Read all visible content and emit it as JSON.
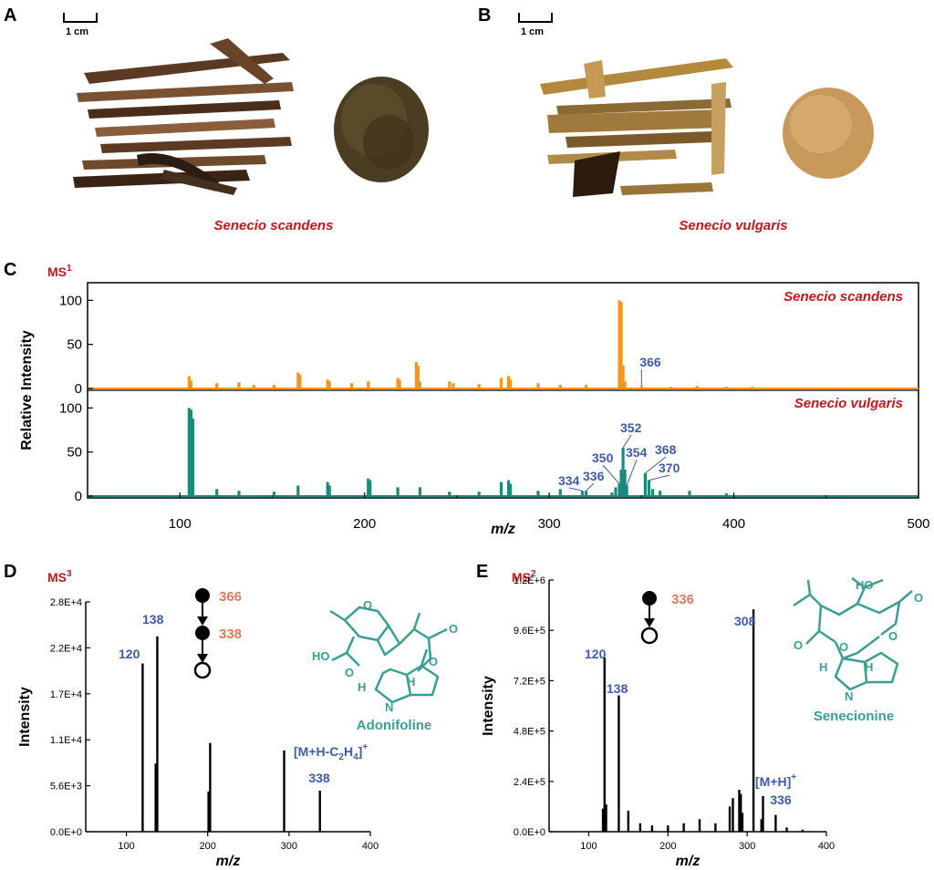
{
  "panels": {
    "a": {
      "letter": "A",
      "scale_label": "1 cm",
      "species": "Senecio scandens"
    },
    "b": {
      "letter": "B",
      "scale_label": "1 cm",
      "species": "Senecio vulgaris"
    },
    "c": {
      "letter": "C",
      "ms_label": "MS",
      "ms_sup": "1"
    },
    "d": {
      "letter": "D",
      "ms_label": "MS",
      "ms_sup": "3",
      "precursors": [
        "366",
        "338"
      ],
      "compound": "Adonifoline",
      "ion_label_main": "[M+H-C",
      "ion_sub": "2",
      "ion_tail": "H",
      "ion_sub2": "4",
      "ion_close": "]",
      "ion_sup": "+",
      "ion_mz": "338"
    },
    "e": {
      "letter": "E",
      "ms_label": "MS",
      "ms_sup": "2",
      "precursors": [
        "336"
      ],
      "compound": "Senecionine",
      "ion_label_main": "[M+H]",
      "ion_sup": "+",
      "ion_mz": "336"
    }
  },
  "colors": {
    "orange": "#f7941d",
    "teal": "#1b8a7a",
    "blue_label": "#3e5aa8",
    "red_label": "#c4161c",
    "structure": "#3a9e92",
    "precursor": "#e07a5f"
  },
  "chart_data": [
    {
      "id": "C-top",
      "type": "bar",
      "title": "",
      "series_label": "Senecio scandens",
      "xlabel": "m/z",
      "ylabel": "Relative Intensity",
      "xlim": [
        50,
        500
      ],
      "ylim": [
        0,
        120
      ],
      "yticks": [
        "0",
        "50",
        "100"
      ],
      "xticks": [
        "100",
        "200",
        "300",
        "400",
        "500"
      ],
      "color": "#f7941d",
      "x": [
        105,
        106,
        120,
        132,
        140,
        151,
        164,
        165,
        180,
        181,
        193,
        202,
        218,
        219,
        228,
        229,
        230,
        246,
        248,
        262,
        274,
        278,
        279,
        294,
        306,
        320,
        338,
        339,
        340,
        341,
        350,
        366,
        380,
        396,
        410
      ],
      "values": [
        14,
        9,
        6,
        7,
        4,
        4,
        18,
        16,
        10,
        8,
        6,
        8,
        12,
        10,
        30,
        26,
        8,
        8,
        6,
        5,
        12,
        14,
        10,
        6,
        4,
        4,
        100,
        98,
        26,
        8,
        3,
        2,
        3,
        2,
        2
      ],
      "annotations": [
        {
          "label": "366",
          "x": 350,
          "y": 3
        }
      ]
    },
    {
      "id": "C-bottom",
      "type": "bar",
      "title": "",
      "series_label": "Senecio vulgaris",
      "xlabel": "m/z",
      "ylabel": "Relative Intensity",
      "xlim": [
        50,
        500
      ],
      "ylim": [
        0,
        120
      ],
      "yticks": [
        "0",
        "50",
        "100"
      ],
      "xticks": [
        "100",
        "200",
        "300",
        "400",
        "500"
      ],
      "color": "#1b8a7a",
      "x": [
        105,
        106,
        107,
        120,
        132,
        151,
        164,
        180,
        181,
        202,
        203,
        218,
        230,
        246,
        262,
        274,
        278,
        279,
        294,
        306,
        318,
        320,
        334,
        336,
        338,
        339,
        340,
        341,
        342,
        352,
        354,
        356,
        360,
        376,
        396
      ],
      "values": [
        100,
        98,
        88,
        8,
        6,
        5,
        12,
        16,
        12,
        20,
        18,
        10,
        10,
        5,
        5,
        16,
        18,
        14,
        6,
        8,
        6,
        6,
        4,
        10,
        14,
        30,
        55,
        30,
        12,
        26,
        18,
        8,
        6,
        6,
        3
      ],
      "annotations": [
        {
          "label": "334",
          "x": 318,
          "y": 6
        },
        {
          "label": "336",
          "x": 320,
          "y": 6
        },
        {
          "label": "350",
          "x": 338,
          "y": 14
        },
        {
          "label": "352",
          "x": 340,
          "y": 55
        },
        {
          "label": "354",
          "x": 342,
          "y": 12
        },
        {
          "label": "368",
          "x": 352,
          "y": 26
        },
        {
          "label": "370",
          "x": 354,
          "y": 18
        }
      ]
    },
    {
      "id": "D",
      "type": "bar",
      "title": "",
      "xlabel": "m/z",
      "ylabel": "Intensity",
      "xlim": [
        50,
        400
      ],
      "ylim": [
        0,
        28000
      ],
      "yticks": [
        "0.0E+0",
        "5.6E+3",
        "1.1E+4",
        "1.7E+4",
        "2.2E+4",
        "2.8E+4"
      ],
      "xticks": [
        "100",
        "200",
        "300",
        "400"
      ],
      "color": "#000000",
      "x": [
        120,
        136,
        138,
        201,
        203,
        294,
        338
      ],
      "values": [
        20500,
        8300,
        23800,
        4900,
        10800,
        9900,
        5000
      ],
      "annotations": [
        {
          "label": "120",
          "x": 120
        },
        {
          "label": "138",
          "x": 138
        }
      ]
    },
    {
      "id": "E",
      "type": "bar",
      "title": "",
      "xlabel": "m/z",
      "ylabel": "Intensity",
      "xlim": [
        50,
        400
      ],
      "ylim": [
        0,
        1200000
      ],
      "yticks": [
        "0.0E+0",
        "2.4E+5",
        "4.8E+5",
        "7.2E+5",
        "9.6E+5",
        "1.2E+6"
      ],
      "xticks": [
        "100",
        "200",
        "300",
        "400"
      ],
      "color": "#000000",
      "x": [
        118,
        120,
        122,
        138,
        150,
        165,
        180,
        200,
        220,
        240,
        260,
        278,
        282,
        290,
        292,
        294,
        308,
        318,
        320,
        336,
        350,
        370
      ],
      "values": [
        110000,
        830000,
        130000,
        650000,
        100000,
        40000,
        30000,
        30000,
        40000,
        60000,
        40000,
        120000,
        160000,
        200000,
        180000,
        90000,
        1060000,
        60000,
        170000,
        80000,
        20000,
        10000
      ],
      "annotations": [
        {
          "label": "120",
          "x": 120
        },
        {
          "label": "138",
          "x": 138
        },
        {
          "label": "308",
          "x": 308
        }
      ]
    }
  ]
}
